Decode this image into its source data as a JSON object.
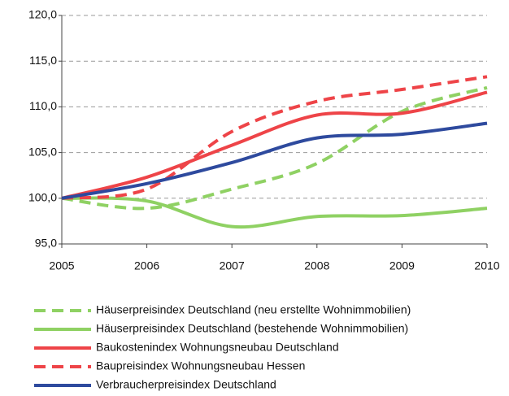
{
  "chart_data": {
    "type": "line",
    "x": [
      2005,
      2006,
      2007,
      2008,
      2009,
      2010
    ],
    "xlim": [
      2005,
      2010
    ],
    "xticks": [
      2005,
      2006,
      2007,
      2008,
      2009,
      2010
    ],
    "ylim": [
      95,
      120
    ],
    "yticks": [
      {
        "value": 95,
        "label": "95,0"
      },
      {
        "value": 100,
        "label": "100,0"
      },
      {
        "value": 105,
        "label": "105,0"
      },
      {
        "value": 110,
        "label": "110,0"
      },
      {
        "value": 115,
        "label": "115,0"
      },
      {
        "value": 120,
        "label": "120,0"
      }
    ],
    "grid": true,
    "legend": "bottom",
    "series": [
      {
        "name": "Häuserpreisindex Deutschland (neu erstellte Wohnimmobilien)",
        "color": "#8fd163",
        "dashed": true,
        "values": [
          100,
          98.9,
          101.0,
          103.8,
          109.5,
          112.1
        ]
      },
      {
        "name": "Häuserpreisindex Deutschland (bestehende Wohnimmobilien)",
        "color": "#8fd163",
        "dashed": false,
        "values": [
          100,
          99.7,
          96.9,
          98.0,
          98.1,
          98.9
        ]
      },
      {
        "name": "Baukostenindex Wohnungsneubau Deutschland",
        "color": "#ee4448",
        "dashed": false,
        "values": [
          100,
          102.3,
          105.8,
          109.1,
          109.3,
          111.6
        ]
      },
      {
        "name": "Baupreisindex Wohnungsneubau Hessen",
        "color": "#ee4448",
        "dashed": true,
        "values": [
          100,
          101.0,
          107.3,
          110.6,
          111.9,
          113.3
        ]
      },
      {
        "name": "Verbraucherpreisindex Deutschland",
        "color": "#2e4a9e",
        "dashed": false,
        "values": [
          100,
          101.6,
          103.9,
          106.6,
          107.0,
          108.2
        ]
      }
    ]
  }
}
